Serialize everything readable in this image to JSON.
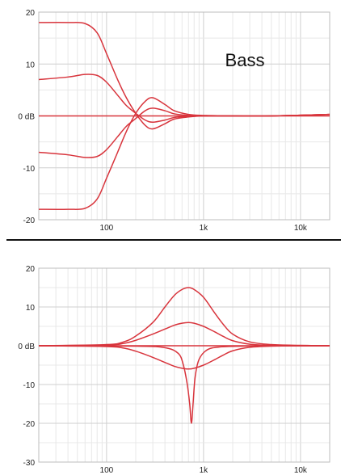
{
  "colors": {
    "curve": "#d8343c",
    "zero": "#d8343c"
  },
  "chart_data": [
    {
      "type": "line",
      "label": "Bass",
      "xscale": "log",
      "xlim": [
        20,
        20000
      ],
      "ylim": [
        -20,
        20
      ],
      "ytick_labels": [
        "20",
        "10",
        "0 dB",
        "-10",
        "-20"
      ],
      "ytick_values": [
        20,
        10,
        0,
        -10,
        -20
      ],
      "xtick_labels": [
        "100",
        "1k",
        "10k"
      ],
      "xtick_values": [
        100,
        1000,
        10000
      ],
      "series": [
        {
          "x": [
            20,
            40,
            60,
            80,
            100,
            130,
            160,
            200,
            250,
            300,
            400,
            500,
            700,
            1000,
            2000,
            5000,
            20000
          ],
          "values": [
            18,
            18,
            17.8,
            16,
            12,
            7,
            3.5,
            0.5,
            -1.8,
            -2.5,
            -1.5,
            -0.6,
            -0.2,
            0,
            0,
            0,
            0.3
          ]
        },
        {
          "x": [
            20,
            40,
            60,
            80,
            100,
            130,
            160,
            200,
            250,
            300,
            400,
            500,
            700,
            1000,
            2000,
            5000,
            20000
          ],
          "values": [
            7,
            7.5,
            8,
            7.8,
            6.5,
            4,
            2,
            0.5,
            -0.8,
            -1.2,
            -0.8,
            -0.3,
            -0.1,
            0,
            0,
            0,
            0.3
          ]
        },
        {
          "x": [
            20,
            40,
            60,
            80,
            100,
            130,
            160,
            200,
            250,
            300,
            400,
            500,
            700,
            1000,
            2000,
            5000,
            20000
          ],
          "values": [
            -7,
            -7.5,
            -8,
            -7.8,
            -6.5,
            -4,
            -2,
            -0.5,
            1,
            1.5,
            1,
            0.4,
            0.1,
            0,
            0,
            0,
            0.3
          ]
        },
        {
          "x": [
            20,
            40,
            60,
            80,
            100,
            130,
            160,
            200,
            250,
            300,
            400,
            500,
            700,
            1000,
            2000,
            5000,
            20000
          ],
          "values": [
            -18,
            -18,
            -17.8,
            -16,
            -12,
            -7,
            -3,
            0.5,
            2.8,
            3.5,
            2.2,
            1,
            0.3,
            0.1,
            0,
            0,
            0.3
          ]
        },
        {
          "x": [
            20,
            20000
          ],
          "values": [
            0,
            0
          ]
        }
      ]
    },
    {
      "type": "line",
      "label": "",
      "xscale": "log",
      "xlim": [
        20,
        20000
      ],
      "ylim": [
        -30,
        20
      ],
      "ytick_labels": [
        "20",
        "10",
        "0 dB",
        "-10",
        "-20",
        "-30"
      ],
      "ytick_values": [
        20,
        10,
        0,
        -10,
        -20,
        -30
      ],
      "xtick_labels": [
        "100",
        "1k",
        "10k"
      ],
      "xtick_values": [
        100,
        1000,
        10000
      ],
      "series": [
        {
          "x": [
            20,
            100,
            150,
            200,
            300,
            400,
            500,
            600,
            700,
            800,
            1000,
            1300,
            1600,
            2000,
            3000,
            5000,
            10000,
            20000
          ],
          "values": [
            0,
            0.3,
            1,
            2.5,
            6,
            10,
            13,
            14.5,
            15,
            14.5,
            12.5,
            8.5,
            5.5,
            3,
            1,
            0.3,
            0.1,
            0
          ]
        },
        {
          "x": [
            20,
            100,
            150,
            200,
            300,
            400,
            500,
            600,
            700,
            800,
            1000,
            1300,
            1600,
            2000,
            3000,
            5000,
            10000,
            20000
          ],
          "values": [
            0,
            0.2,
            0.6,
            1.4,
            3,
            4.3,
            5.3,
            5.8,
            6,
            5.8,
            5,
            3.6,
            2.4,
            1.3,
            0.4,
            0.1,
            0,
            0
          ]
        },
        {
          "x": [
            20,
            100,
            150,
            200,
            300,
            400,
            500,
            600,
            700,
            800,
            1000,
            1300,
            1600,
            2000,
            3000,
            5000,
            10000,
            20000
          ],
          "values": [
            0,
            -0.2,
            -0.6,
            -1.4,
            -3,
            -4.3,
            -5.3,
            -5.8,
            -6,
            -5.8,
            -5,
            -3.6,
            -2.4,
            -1.3,
            -0.4,
            -0.1,
            0,
            0
          ]
        },
        {
          "x": [
            20,
            200,
            400,
            550,
            620,
            680,
            720,
            750,
            780,
            820,
            900,
            1100,
            1500,
            2500,
            5000,
            20000
          ],
          "values": [
            0,
            -0.1,
            -0.5,
            -2,
            -5,
            -10,
            -15,
            -20,
            -15,
            -8,
            -3.5,
            -1,
            -0.3,
            -0.1,
            0,
            0
          ]
        },
        {
          "x": [
            20,
            20000
          ],
          "values": [
            0,
            0
          ]
        }
      ]
    }
  ]
}
